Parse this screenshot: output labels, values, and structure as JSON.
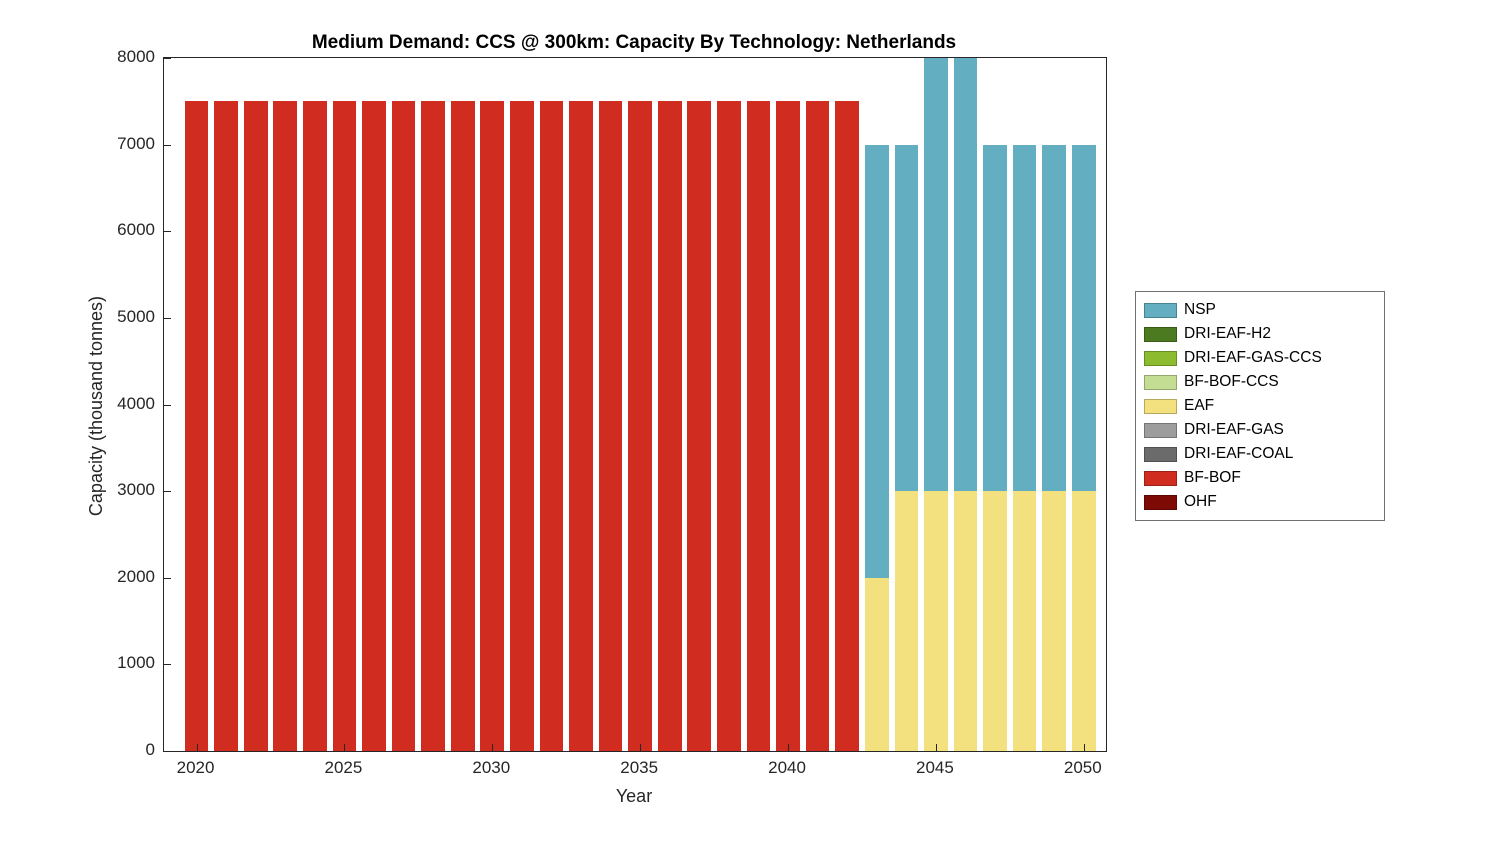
{
  "colors": {
    "background": "#ffffff",
    "axis": "#262626",
    "title": "#000000",
    "legend_border": "#707070"
  },
  "chart_data": {
    "type": "bar",
    "subtype": "stacked",
    "title": "Medium Demand: CCS @ 300km: Capacity By Technology: Netherlands",
    "xlabel": "Year",
    "ylabel": "Capacity (thousand tonnes)",
    "xlim": [
      2018.9,
      2050.75
    ],
    "ylim": [
      0,
      8000
    ],
    "xticks": [
      2020,
      2025,
      2030,
      2035,
      2040,
      2045,
      2050
    ],
    "yticks": [
      0,
      1000,
      2000,
      3000,
      4000,
      5000,
      6000,
      7000,
      8000
    ],
    "grid": false,
    "legend_position": "right-outside",
    "bar_width": 0.8,
    "x": [
      2020,
      2021,
      2022,
      2023,
      2024,
      2025,
      2026,
      2027,
      2028,
      2029,
      2030,
      2031,
      2032,
      2033,
      2034,
      2035,
      2036,
      2037,
      2038,
      2039,
      2040,
      2041,
      2042,
      2043,
      2044,
      2045,
      2046,
      2047,
      2048,
      2049,
      2050
    ],
    "series": [
      {
        "name": "OHF",
        "color": "#7E0A06",
        "values": [
          0,
          0,
          0,
          0,
          0,
          0,
          0,
          0,
          0,
          0,
          0,
          0,
          0,
          0,
          0,
          0,
          0,
          0,
          0,
          0,
          0,
          0,
          0,
          0,
          0,
          0,
          0,
          0,
          0,
          0,
          0
        ]
      },
      {
        "name": "BF-BOF",
        "color": "#D02C20",
        "values": [
          7500,
          7500,
          7500,
          7500,
          7500,
          7500,
          7500,
          7500,
          7500,
          7500,
          7500,
          7500,
          7500,
          7500,
          7500,
          7500,
          7500,
          7500,
          7500,
          7500,
          7500,
          7500,
          7500,
          0,
          0,
          0,
          0,
          0,
          0,
          0,
          0
        ]
      },
      {
        "name": "DRI-EAF-COAL",
        "color": "#6B6B6B",
        "values": [
          0,
          0,
          0,
          0,
          0,
          0,
          0,
          0,
          0,
          0,
          0,
          0,
          0,
          0,
          0,
          0,
          0,
          0,
          0,
          0,
          0,
          0,
          0,
          0,
          0,
          0,
          0,
          0,
          0,
          0,
          0
        ]
      },
      {
        "name": "DRI-EAF-GAS",
        "color": "#9D9D9D",
        "values": [
          0,
          0,
          0,
          0,
          0,
          0,
          0,
          0,
          0,
          0,
          0,
          0,
          0,
          0,
          0,
          0,
          0,
          0,
          0,
          0,
          0,
          0,
          0,
          0,
          0,
          0,
          0,
          0,
          0,
          0,
          0
        ]
      },
      {
        "name": "EAF",
        "color": "#F3E17F",
        "values": [
          0,
          0,
          0,
          0,
          0,
          0,
          0,
          0,
          0,
          0,
          0,
          0,
          0,
          0,
          0,
          0,
          0,
          0,
          0,
          0,
          0,
          0,
          0,
          2000,
          3000,
          3000,
          3000,
          3000,
          3000,
          3000,
          3000
        ]
      },
      {
        "name": "BF-BOF-CCS",
        "color": "#C3DE93",
        "values": [
          0,
          0,
          0,
          0,
          0,
          0,
          0,
          0,
          0,
          0,
          0,
          0,
          0,
          0,
          0,
          0,
          0,
          0,
          0,
          0,
          0,
          0,
          0,
          0,
          0,
          0,
          0,
          0,
          0,
          0,
          0
        ]
      },
      {
        "name": "DRI-EAF-GAS-CCS",
        "color": "#8CBB30",
        "values": [
          0,
          0,
          0,
          0,
          0,
          0,
          0,
          0,
          0,
          0,
          0,
          0,
          0,
          0,
          0,
          0,
          0,
          0,
          0,
          0,
          0,
          0,
          0,
          0,
          0,
          0,
          0,
          0,
          0,
          0,
          0
        ]
      },
      {
        "name": "DRI-EAF-H2",
        "color": "#4C7A21",
        "values": [
          0,
          0,
          0,
          0,
          0,
          0,
          0,
          0,
          0,
          0,
          0,
          0,
          0,
          0,
          0,
          0,
          0,
          0,
          0,
          0,
          0,
          0,
          0,
          0,
          0,
          0,
          0,
          0,
          0,
          0,
          0
        ]
      },
      {
        "name": "NSP",
        "color": "#63AEC1",
        "values": [
          0,
          0,
          0,
          0,
          0,
          0,
          0,
          0,
          0,
          0,
          0,
          0,
          0,
          0,
          0,
          0,
          0,
          0,
          0,
          0,
          0,
          0,
          0,
          5000,
          4000,
          5000,
          5000,
          4000,
          4000,
          4000,
          4000
        ]
      }
    ],
    "legend": [
      "NSP",
      "DRI-EAF-H2",
      "DRI-EAF-GAS-CCS",
      "BF-BOF-CCS",
      "EAF",
      "DRI-EAF-GAS",
      "DRI-EAF-COAL",
      "BF-BOF",
      "OHF"
    ]
  }
}
